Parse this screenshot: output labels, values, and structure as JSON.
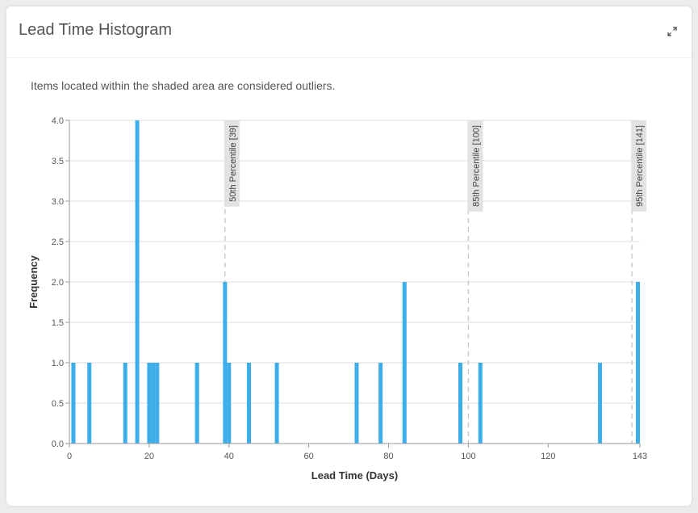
{
  "card": {
    "title": "Lead Time Histogram",
    "expand_icon": "expand-icon",
    "subtitle": "Items located within the shaded area are considered outliers."
  },
  "colors": {
    "bar": "#3daee9",
    "grid": "#dddddd",
    "percentile_line": "#c4c4c4",
    "percentile_label_bg": "#e2e2e2"
  },
  "chart_data": {
    "type": "bar",
    "xlabel": "Lead Time (Days)",
    "ylabel": "Frequency",
    "xlim": [
      0,
      143
    ],
    "ylim": [
      0,
      4
    ],
    "x_ticks": [
      0,
      20,
      40,
      60,
      80,
      100,
      120,
      143
    ],
    "y_ticks": [
      "0.0",
      "0.5",
      "1.0",
      "1.5",
      "2.0",
      "2.5",
      "3.0",
      "3.5",
      "4.0"
    ],
    "grid": true,
    "bins": [
      {
        "x": 1,
        "count": 1
      },
      {
        "x": 5,
        "count": 1
      },
      {
        "x": 14,
        "count": 1
      },
      {
        "x": 17,
        "count": 4
      },
      {
        "x": 20,
        "count": 1
      },
      {
        "x": 21,
        "count": 1
      },
      {
        "x": 22,
        "count": 1
      },
      {
        "x": 32,
        "count": 1
      },
      {
        "x": 39,
        "count": 2
      },
      {
        "x": 40,
        "count": 1
      },
      {
        "x": 45,
        "count": 1
      },
      {
        "x": 52,
        "count": 1
      },
      {
        "x": 72,
        "count": 1
      },
      {
        "x": 78,
        "count": 1
      },
      {
        "x": 84,
        "count": 2
      },
      {
        "x": 98,
        "count": 1
      },
      {
        "x": 103,
        "count": 1
      },
      {
        "x": 133,
        "count": 1
      },
      {
        "x": 143,
        "count": 2
      }
    ],
    "percentiles": [
      {
        "label": "50th Percentile [39]",
        "value": 39
      },
      {
        "label": "85th Percentile [100]",
        "value": 100
      },
      {
        "label": "95th Percentile [141]",
        "value": 141
      }
    ]
  }
}
